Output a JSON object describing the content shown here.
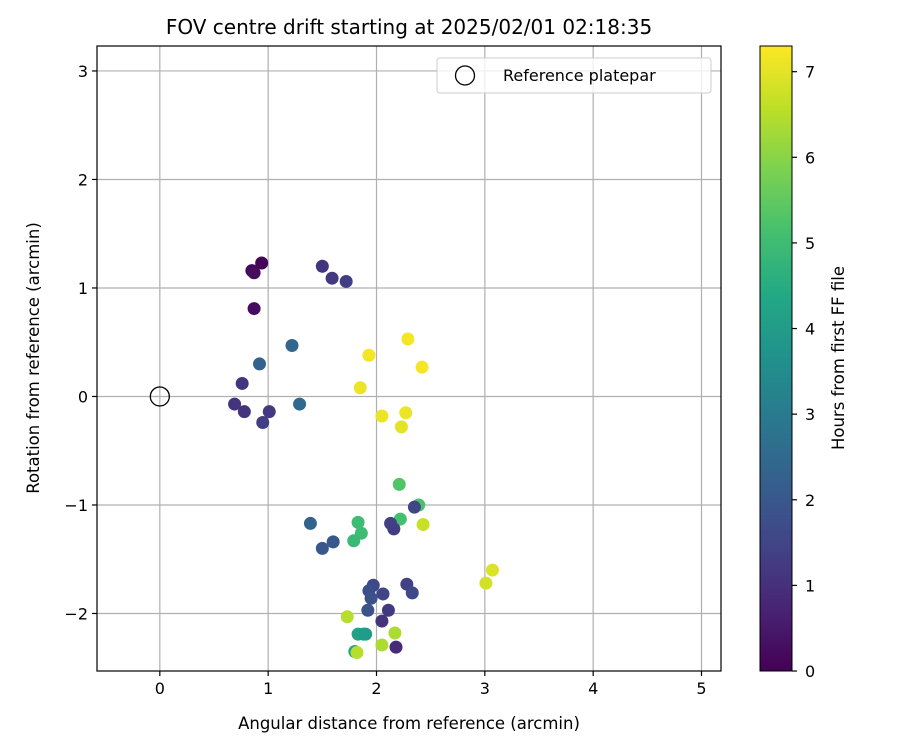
{
  "chart_data": {
    "type": "scatter",
    "title": "FOV centre drift starting at 2025/02/01 02:18:35",
    "xlabel": "Angular distance from reference (arcmin)",
    "ylabel": "Rotation from reference (arcmin)",
    "xlim": [
      -0.58,
      5.18
    ],
    "ylim": [
      -2.53,
      3.23
    ],
    "xticks": [
      0,
      1,
      2,
      3,
      4,
      5
    ],
    "yticks": [
      -2,
      -1,
      0,
      1,
      2,
      3
    ],
    "grid": true,
    "legend": {
      "position": "top-right",
      "entries": [
        "Reference platepar"
      ]
    },
    "reference_point": {
      "x": 0,
      "y": 0
    },
    "colorbar": {
      "label": "Hours from first FF file",
      "colormap": "viridis",
      "range": [
        0,
        7.3
      ],
      "ticks": [
        0,
        1,
        2,
        3,
        4,
        5,
        6,
        7
      ]
    },
    "points": [
      {
        "x": 0.94,
        "y": 1.23,
        "c": 0.1
      },
      {
        "x": 0.85,
        "y": 1.16,
        "c": 0.1
      },
      {
        "x": 0.87,
        "y": 1.14,
        "c": 0.2
      },
      {
        "x": 0.87,
        "y": 0.81,
        "c": 0.25
      },
      {
        "x": 1.5,
        "y": 1.2,
        "c": 1.1
      },
      {
        "x": 1.59,
        "y": 1.09,
        "c": 1.2
      },
      {
        "x": 1.72,
        "y": 1.06,
        "c": 1.3
      },
      {
        "x": 0.76,
        "y": 0.12,
        "c": 1.1
      },
      {
        "x": 0.69,
        "y": -0.07,
        "c": 1.1
      },
      {
        "x": 0.78,
        "y": -0.14,
        "c": 1.1
      },
      {
        "x": 1.01,
        "y": -0.14,
        "c": 1.2
      },
      {
        "x": 0.95,
        "y": -0.24,
        "c": 1.3
      },
      {
        "x": 0.92,
        "y": 0.3,
        "c": 2.3
      },
      {
        "x": 1.22,
        "y": 0.47,
        "c": 2.4
      },
      {
        "x": 1.29,
        "y": -0.07,
        "c": 2.5
      },
      {
        "x": 1.93,
        "y": 0.38,
        "c": 7.2
      },
      {
        "x": 2.29,
        "y": 0.53,
        "c": 7.2
      },
      {
        "x": 2.42,
        "y": 0.27,
        "c": 7.2
      },
      {
        "x": 1.85,
        "y": 0.08,
        "c": 7.1
      },
      {
        "x": 2.05,
        "y": -0.18,
        "c": 7.1
      },
      {
        "x": 2.27,
        "y": -0.15,
        "c": 7.1
      },
      {
        "x": 2.23,
        "y": -0.28,
        "c": 7.0
      },
      {
        "x": 2.21,
        "y": -0.81,
        "c": 5.3
      },
      {
        "x": 2.39,
        "y": -1.0,
        "c": 5.2
      },
      {
        "x": 2.35,
        "y": -1.02,
        "c": 1.5
      },
      {
        "x": 2.22,
        "y": -1.13,
        "c": 5.1
      },
      {
        "x": 2.43,
        "y": -1.18,
        "c": 6.7
      },
      {
        "x": 2.13,
        "y": -1.17,
        "c": 1.4
      },
      {
        "x": 2.16,
        "y": -1.22,
        "c": 1.3
      },
      {
        "x": 1.83,
        "y": -1.16,
        "c": 5.0
      },
      {
        "x": 1.86,
        "y": -1.26,
        "c": 5.0
      },
      {
        "x": 1.79,
        "y": -1.33,
        "c": 4.9
      },
      {
        "x": 1.39,
        "y": -1.17,
        "c": 2.3
      },
      {
        "x": 1.6,
        "y": -1.34,
        "c": 2.0
      },
      {
        "x": 1.5,
        "y": -1.4,
        "c": 2.0
      },
      {
        "x": 3.07,
        "y": -1.6,
        "c": 6.9
      },
      {
        "x": 3.01,
        "y": -1.72,
        "c": 6.8
      },
      {
        "x": 2.28,
        "y": -1.73,
        "c": 1.4
      },
      {
        "x": 2.33,
        "y": -1.81,
        "c": 1.6
      },
      {
        "x": 1.97,
        "y": -1.74,
        "c": 1.6
      },
      {
        "x": 1.93,
        "y": -1.79,
        "c": 1.7
      },
      {
        "x": 1.95,
        "y": -1.86,
        "c": 1.8
      },
      {
        "x": 2.06,
        "y": -1.82,
        "c": 1.5
      },
      {
        "x": 1.92,
        "y": -1.97,
        "c": 1.9
      },
      {
        "x": 2.11,
        "y": -1.97,
        "c": 1.2
      },
      {
        "x": 2.05,
        "y": -2.07,
        "c": 1.1
      },
      {
        "x": 2.18,
        "y": -2.31,
        "c": 0.9
      },
      {
        "x": 1.73,
        "y": -2.03,
        "c": 6.5
      },
      {
        "x": 1.83,
        "y": -2.19,
        "c": 4.2
      },
      {
        "x": 1.88,
        "y": -2.19,
        "c": 4.1
      },
      {
        "x": 1.9,
        "y": -2.19,
        "c": 4.0
      },
      {
        "x": 2.17,
        "y": -2.18,
        "c": 6.4
      },
      {
        "x": 2.05,
        "y": -2.29,
        "c": 6.4
      },
      {
        "x": 1.8,
        "y": -2.35,
        "c": 4.3
      },
      {
        "x": 1.82,
        "y": -2.36,
        "c": 6.5
      }
    ]
  }
}
